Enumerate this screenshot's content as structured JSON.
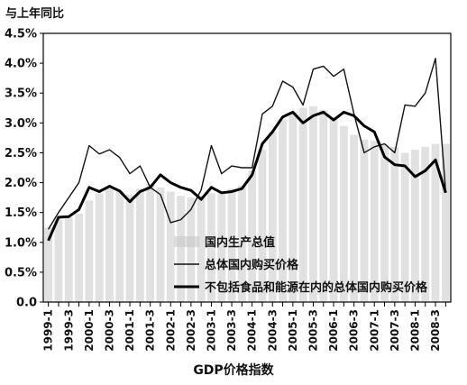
{
  "chart_data": {
    "type": "line",
    "y_unit_label": "与上年同比",
    "xlabel": "GDP价格指数",
    "ylabel": "",
    "ylim": [
      0,
      0.045
    ],
    "yticks": [
      {
        "value": 0.0,
        "label": "0.0"
      },
      {
        "value": 0.005,
        "label": "0.5%"
      },
      {
        "value": 0.01,
        "label": "1.0%"
      },
      {
        "value": 0.015,
        "label": "1.5%"
      },
      {
        "value": 0.02,
        "label": "2.0%"
      },
      {
        "value": 0.025,
        "label": "2.5%"
      },
      {
        "value": 0.03,
        "label": "3.0%"
      },
      {
        "value": 0.035,
        "label": "3.5%"
      },
      {
        "value": 0.04,
        "label": "4.0%"
      },
      {
        "value": 0.045,
        "label": "4.5%"
      }
    ],
    "x": [
      "1999-1",
      "1999-2",
      "1999-3",
      "1999-4",
      "2000-1",
      "2000-2",
      "2000-3",
      "2000-4",
      "2001-1",
      "2001-2",
      "2001-3",
      "2001-4",
      "2002-1",
      "2002-2",
      "2002-3",
      "2002-4",
      "2003-1",
      "2003-2",
      "2003-3",
      "2003-4",
      "2004-1",
      "2004-2",
      "2004-3",
      "2004-4",
      "2005-1",
      "2005-2",
      "2005-3",
      "2005-4",
      "2006-1",
      "2006-2",
      "2006-3",
      "2006-4",
      "2007-1",
      "2007-2",
      "2007-3",
      "2007-4",
      "2008-1",
      "2008-2",
      "2008-3",
      "2008-4"
    ],
    "xtick_labels": [
      "1999-1",
      "1999-3",
      "2000-1",
      "2000-3",
      "2001-1",
      "2001-3",
      "2002-1",
      "2002-3",
      "2003-1",
      "2003-3",
      "2004-1",
      "2004-3",
      "2005-1",
      "2005-3",
      "2006-1",
      "2006-3",
      "2007-1",
      "2007-3",
      "2008-1",
      "2008-3"
    ],
    "grid": false,
    "legend_position": "bottom-center",
    "series": [
      {
        "name": "国内生产总值",
        "style": "bars",
        "color": "#c8c8c8",
        "values": [
          0.0125,
          0.0138,
          0.0142,
          0.0148,
          0.017,
          0.0182,
          0.019,
          0.0185,
          0.018,
          0.019,
          0.0198,
          0.0192,
          0.0185,
          0.0178,
          0.0175,
          0.0178,
          0.0182,
          0.0185,
          0.019,
          0.0195,
          0.022,
          0.0255,
          0.0285,
          0.0305,
          0.0318,
          0.0325,
          0.0328,
          0.0322,
          0.031,
          0.0295,
          0.028,
          0.0272,
          0.027,
          0.0265,
          0.026,
          0.025,
          0.0255,
          0.026,
          0.0265,
          0.0265
        ]
      },
      {
        "name": "总体国内购买价格",
        "style": "thin",
        "color": "#111111",
        "values": [
          0.0122,
          0.015,
          0.0175,
          0.02,
          0.0262,
          0.0248,
          0.0255,
          0.0242,
          0.0215,
          0.0228,
          0.0192,
          0.018,
          0.0133,
          0.0138,
          0.0155,
          0.0188,
          0.0262,
          0.0215,
          0.0228,
          0.0225,
          0.0225,
          0.0315,
          0.0328,
          0.037,
          0.036,
          0.033,
          0.039,
          0.0395,
          0.0378,
          0.039,
          0.0315,
          0.025,
          0.026,
          0.0265,
          0.025,
          0.033,
          0.0328,
          0.035,
          0.0408,
          0.0185
        ]
      },
      {
        "name": "不包括食品和能源在内的总体国内购买价格",
        "style": "thick",
        "color": "#000000",
        "values": [
          0.0103,
          0.0142,
          0.0143,
          0.0155,
          0.0192,
          0.0185,
          0.0194,
          0.0186,
          0.0168,
          0.0185,
          0.0192,
          0.0213,
          0.02,
          0.0192,
          0.0187,
          0.0172,
          0.0192,
          0.0183,
          0.0185,
          0.019,
          0.0213,
          0.0265,
          0.0285,
          0.031,
          0.0318,
          0.03,
          0.0312,
          0.0318,
          0.0305,
          0.0318,
          0.0312,
          0.0295,
          0.0285,
          0.0243,
          0.023,
          0.0228,
          0.021,
          0.022,
          0.0238,
          0.0183
        ]
      }
    ]
  }
}
